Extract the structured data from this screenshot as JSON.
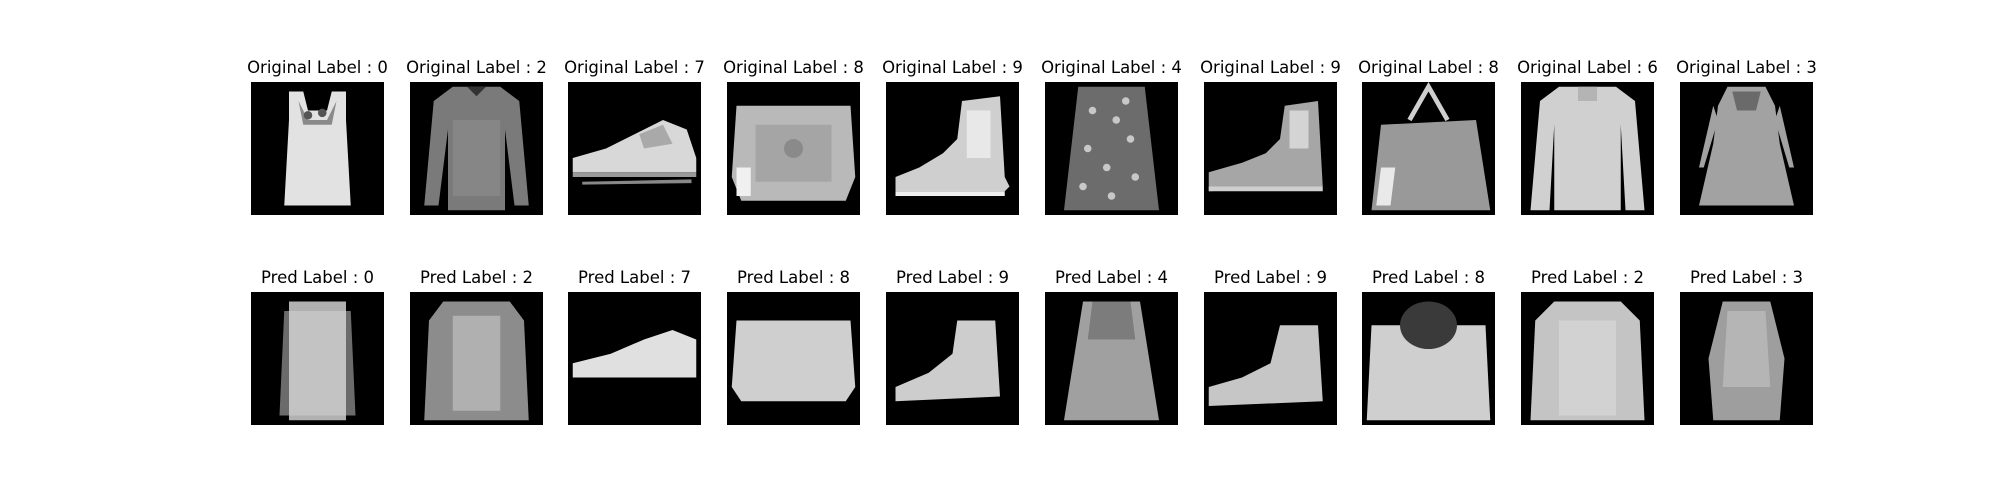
{
  "figure": {
    "rows": [
      {
        "kind": "original",
        "panels": [
          {
            "title": "Original Label : 0",
            "icon": "tank-top-image"
          },
          {
            "title": "Original Label : 2",
            "icon": "pullover-image"
          },
          {
            "title": "Original Label : 7",
            "icon": "sneaker-image"
          },
          {
            "title": "Original Label : 8",
            "icon": "bag-image"
          },
          {
            "title": "Original Label : 9",
            "icon": "ankle-boot-image"
          },
          {
            "title": "Original Label : 4",
            "icon": "coat-image"
          },
          {
            "title": "Original Label : 9",
            "icon": "ankle-boot-image"
          },
          {
            "title": "Original Label : 8",
            "icon": "handbag-image"
          },
          {
            "title": "Original Label : 6",
            "icon": "shirt-image"
          },
          {
            "title": "Original Label : 3",
            "icon": "dress-image"
          }
        ]
      },
      {
        "kind": "pred",
        "panels": [
          {
            "title": "Pred Label : 0",
            "icon": "blurry-top-image"
          },
          {
            "title": "Pred Label : 2",
            "icon": "blurry-pullover-image"
          },
          {
            "title": "Pred Label : 7",
            "icon": "blurry-sneaker-image"
          },
          {
            "title": "Pred Label : 8",
            "icon": "blurry-bag-image"
          },
          {
            "title": "Pred Label : 9",
            "icon": "blurry-boot-image"
          },
          {
            "title": "Pred Label : 4",
            "icon": "blurry-coat-image"
          },
          {
            "title": "Pred Label : 9",
            "icon": "blurry-boot-image"
          },
          {
            "title": "Pred Label : 8",
            "icon": "blurry-bag-image"
          },
          {
            "title": "Pred Label : 2",
            "icon": "blurry-pullover-image"
          },
          {
            "title": "Pred Label : 3",
            "icon": "blurry-dress-image"
          }
        ]
      }
    ]
  }
}
